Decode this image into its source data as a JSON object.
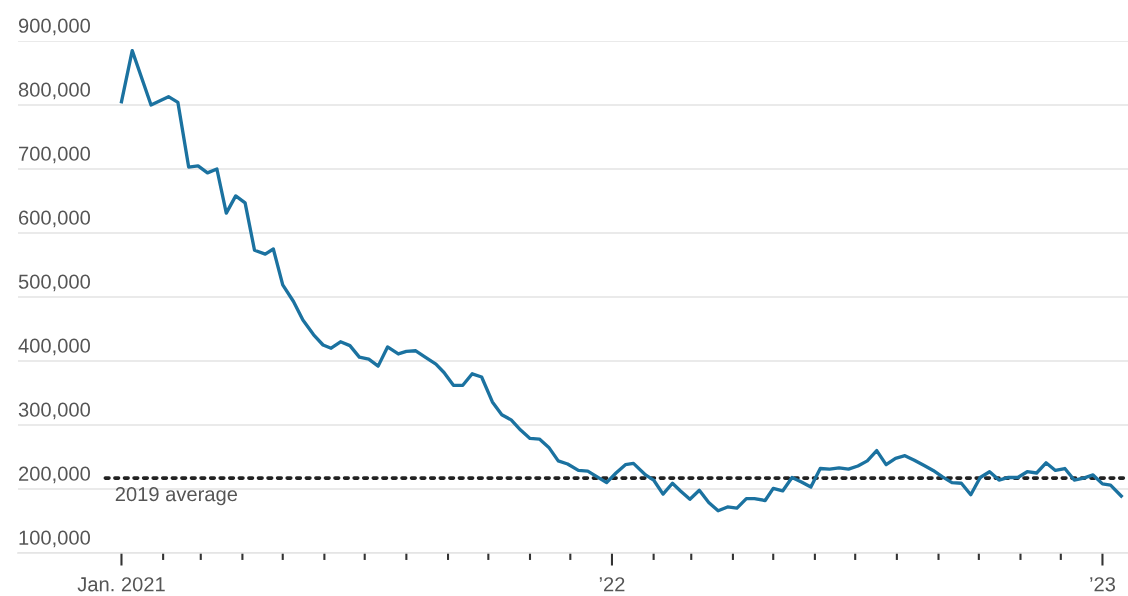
{
  "chart_data": {
    "type": "line",
    "x": [
      "2021-01-01",
      "2021-01-09",
      "2021-01-23",
      "2021-02-05",
      "2021-02-12",
      "2021-02-20",
      "2021-02-27",
      "2021-03-06",
      "2021-03-13",
      "2021-03-20",
      "2021-03-27",
      "2021-04-03",
      "2021-04-10",
      "2021-04-18",
      "2021-04-24",
      "2021-05-01",
      "2021-05-09",
      "2021-05-16",
      "2021-05-24",
      "2021-05-31",
      "2021-06-06",
      "2021-06-13",
      "2021-06-20",
      "2021-06-27",
      "2021-07-04",
      "2021-07-11",
      "2021-07-18",
      "2021-07-26",
      "2021-08-01",
      "2021-08-08",
      "2021-08-15",
      "2021-08-23",
      "2021-08-29",
      "2021-09-05",
      "2021-09-12",
      "2021-09-19",
      "2021-09-26",
      "2021-10-04",
      "2021-10-11",
      "2021-10-18",
      "2021-10-25",
      "2021-11-01",
      "2021-11-08",
      "2021-11-15",
      "2021-11-22",
      "2021-11-29",
      "2021-12-07",
      "2021-12-14",
      "2021-12-21",
      "2021-12-28",
      "2022-01-04",
      "2022-01-11",
      "2022-01-17",
      "2022-01-26",
      "2022-02-01",
      "2022-02-08",
      "2022-02-15",
      "2022-02-21",
      "2022-02-28",
      "2022-03-07",
      "2022-03-14",
      "2022-03-21",
      "2022-03-28",
      "2022-04-04",
      "2022-04-11",
      "2022-04-17",
      "2022-04-25",
      "2022-05-01",
      "2022-05-08",
      "2022-05-15",
      "2022-05-22",
      "2022-05-29",
      "2022-06-05",
      "2022-06-12",
      "2022-06-19",
      "2022-06-26",
      "2022-07-03",
      "2022-07-10",
      "2022-07-17",
      "2022-07-24",
      "2022-07-31",
      "2022-08-07",
      "2022-08-14",
      "2022-08-21",
      "2022-08-28",
      "2022-09-04",
      "2022-09-11",
      "2022-09-18",
      "2022-09-25",
      "2022-10-02",
      "2022-10-09",
      "2022-10-16",
      "2022-10-23",
      "2022-10-30",
      "2022-11-06",
      "2022-11-13",
      "2022-11-20",
      "2022-11-27",
      "2022-12-04",
      "2022-12-11",
      "2022-12-18",
      "2022-12-25",
      "2023-01-01",
      "2023-01-07",
      "2023-01-15"
    ],
    "series": [
      {
        "color": "#1b72a0",
        "values": [
          805000,
          885000,
          800000,
          813000,
          804000,
          703000,
          705000,
          694000,
          700000,
          631000,
          658000,
          647000,
          573000,
          567000,
          575000,
          519000,
          493000,
          464000,
          441000,
          425000,
          420000,
          430000,
          424000,
          406000,
          403000,
          392000,
          422000,
          411000,
          415000,
          416000,
          406000,
          395000,
          382000,
          362000,
          362000,
          380000,
          375000,
          336000,
          316000,
          308000,
          292000,
          279000,
          278000,
          265000,
          244000,
          239000,
          229000,
          228000,
          219000,
          210000,
          225000,
          238000,
          240000,
          222000,
          214000,
          192000,
          209000,
          197000,
          184000,
          198000,
          179000,
          166000,
          172000,
          170000,
          185000,
          185000,
          182000,
          201000,
          197000,
          218000,
          211000,
          203000,
          232000,
          231000,
          233000,
          231000,
          236000,
          244000,
          260000,
          238000,
          248000,
          252000,
          245000,
          237000,
          229000,
          219000,
          210000,
          209000,
          191000,
          218000,
          227000,
          214000,
          218000,
          218000,
          227000,
          225000,
          241000,
          229000,
          232000,
          214000,
          217000,
          222000,
          208000,
          206000,
          189000
        ]
      }
    ],
    "xlim": [
      "2020-10-16",
      "2023-01-20"
    ],
    "ylim": [
      100000,
      900000
    ],
    "yticks": [
      {
        "value": 100000,
        "label": "100,000"
      },
      {
        "value": 200000,
        "label": "200,000"
      },
      {
        "value": 300000,
        "label": "300,000"
      },
      {
        "value": 400000,
        "label": "400,000"
      },
      {
        "value": 500000,
        "label": "500,000"
      },
      {
        "value": 600000,
        "label": "600,000"
      },
      {
        "value": 700000,
        "label": "700,000"
      },
      {
        "value": 800000,
        "label": "800,000"
      },
      {
        "value": 900000,
        "label": "900,000"
      }
    ],
    "xticks": [
      {
        "value": "2021-01-01",
        "label": "Jan. 2021"
      },
      {
        "value": "2021-02-01",
        "label": null
      },
      {
        "value": "2021-03-01",
        "label": null
      },
      {
        "value": "2021-04-01",
        "label": null
      },
      {
        "value": "2021-05-01",
        "label": null
      },
      {
        "value": "2021-06-01",
        "label": null
      },
      {
        "value": "2021-07-01",
        "label": null
      },
      {
        "value": "2021-08-01",
        "label": null
      },
      {
        "value": "2021-09-01",
        "label": null
      },
      {
        "value": "2021-10-01",
        "label": null
      },
      {
        "value": "2021-11-01",
        "label": null
      },
      {
        "value": "2021-12-01",
        "label": null
      },
      {
        "value": "2022-01-01",
        "label": "’22"
      },
      {
        "value": "2022-02-01",
        "label": null
      },
      {
        "value": "2022-03-01",
        "label": null
      },
      {
        "value": "2022-04-01",
        "label": null
      },
      {
        "value": "2022-05-01",
        "label": null
      },
      {
        "value": "2022-06-01",
        "label": null
      },
      {
        "value": "2022-07-01",
        "label": null
      },
      {
        "value": "2022-08-01",
        "label": null
      },
      {
        "value": "2022-09-01",
        "label": null
      },
      {
        "value": "2022-10-01",
        "label": null
      },
      {
        "value": "2022-11-01",
        "label": null
      },
      {
        "value": "2022-12-01",
        "label": null
      },
      {
        "value": "2023-01-01",
        "label": "’23"
      }
    ],
    "ref_lines": [
      {
        "axis": "y",
        "value": 217000,
        "label": "2019 average",
        "color": "#222222",
        "line_style": "dotted"
      }
    ],
    "grid": "y",
    "line_style": "solid",
    "marker": "none"
  }
}
